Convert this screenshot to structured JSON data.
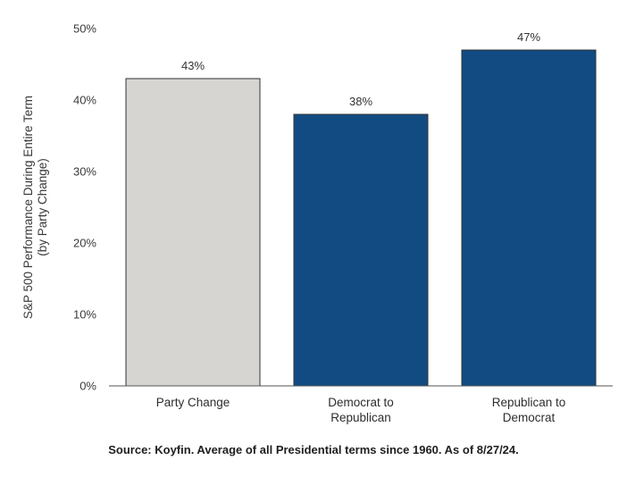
{
  "chart_data": {
    "type": "bar",
    "categories": [
      [
        "Party Change"
      ],
      [
        "Democrat to",
        "Republican"
      ],
      [
        "Republican to",
        "Democrat"
      ]
    ],
    "values": [
      43,
      38,
      47
    ],
    "value_labels": [
      "43%",
      "38%",
      "47%"
    ],
    "bar_colors": [
      "#d6d5d1",
      "#114b82",
      "#114b82"
    ],
    "bar_stroke": "#333333",
    "ylabel_lines": [
      "S&P 500 Performance During Entire Term",
      "(by Party Change)"
    ],
    "ylim": [
      0,
      50
    ],
    "yticks": [
      0,
      10,
      20,
      30,
      40,
      50
    ],
    "ytick_labels": [
      "0%",
      "10%",
      "20%",
      "30%",
      "40%",
      "50%"
    ],
    "grid": false,
    "legend": "none"
  },
  "source_note": "Source: Koyfin. Average of all Presidential terms since 1960. As of 8/27/24."
}
